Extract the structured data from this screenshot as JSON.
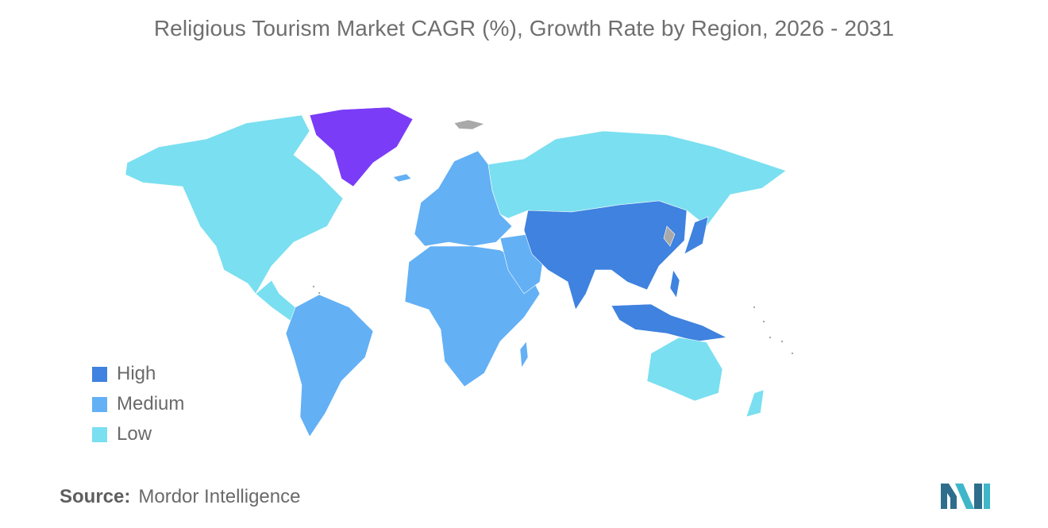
{
  "title": "Religious Tourism Market CAGR (%), Growth Rate by Region, 2026 - 2031",
  "legend": [
    {
      "label": "High",
      "color": "#3f82df"
    },
    {
      "label": "Medium",
      "color": "#63b0f5"
    },
    {
      "label": "Low",
      "color": "#7adff0"
    }
  ],
  "colors": {
    "high": "#3f82df",
    "medium": "#63b0f5",
    "low": "#7adff0",
    "greenland": "#7a3cf7",
    "no_data": "#a9a9a9"
  },
  "regions": {
    "north_america": "Low",
    "greenland": "no legend category",
    "south_america": "Medium",
    "europe": "Medium",
    "africa": "Medium",
    "middle_east": "Medium",
    "russia": "Low",
    "asia_pacific": "High",
    "australia_new_zealand": "Low"
  },
  "source": {
    "key": "Source:",
    "value": "Mordor Intelligence"
  },
  "logo_icon": "mordor-intelligence-logo"
}
